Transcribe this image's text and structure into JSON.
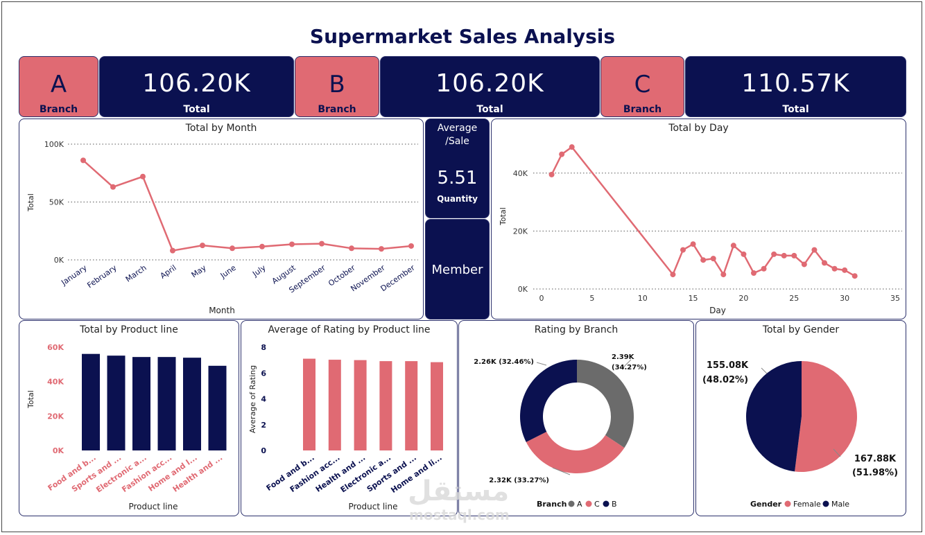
{
  "title": "Supermarket Sales Analysis",
  "colors": {
    "navy": "#0b1150",
    "pink": "#e06a73",
    "gray": "#6b6b6b"
  },
  "kpis": [
    {
      "letter": "A",
      "letter_label": "Branch",
      "value": "106.20K",
      "value_label": "Total"
    },
    {
      "letter": "B",
      "letter_label": "Branch",
      "value": "106.20K",
      "value_label": "Total"
    },
    {
      "letter": "C",
      "letter_label": "Branch",
      "value": "110.57K",
      "value_label": "Total"
    }
  ],
  "avg_card": {
    "title": "Average /Sale",
    "value": "5.51",
    "label": "Quantity"
  },
  "member_card": {
    "label": "Member"
  },
  "watermark": {
    "arabic": "مستقل",
    "latin": "mostaql.com"
  },
  "chart_data": [
    {
      "type": "line",
      "title": "Total by Month",
      "xlabel": "Month",
      "ylabel": "Total",
      "categories": [
        "January",
        "February",
        "March",
        "April",
        "May",
        "June",
        "July",
        "August",
        "September",
        "October",
        "November",
        "December"
      ],
      "values": [
        86,
        63,
        72,
        8,
        12.5,
        10,
        11.5,
        13.5,
        14,
        10,
        9.5,
        12
      ],
      "yticks": [
        "0K",
        "50K",
        "100K"
      ],
      "ylim": [
        0,
        100
      ],
      "grid": true
    },
    {
      "type": "line",
      "title": "Total by Day",
      "xlabel": "Day",
      "ylabel": "Total",
      "x": [
        1,
        2,
        3,
        13,
        14,
        15,
        16,
        17,
        18,
        19,
        20,
        21,
        22,
        23,
        24,
        25,
        26,
        27,
        28,
        29,
        30,
        31
      ],
      "values": [
        39.5,
        46.5,
        49,
        5,
        13.5,
        15.5,
        10,
        10.5,
        5,
        15,
        12,
        5.5,
        7,
        12,
        11.5,
        11.5,
        8.5,
        13.5,
        9,
        7,
        6.5,
        4.5
      ],
      "xticks": [
        "0",
        "5",
        "10",
        "15",
        "20",
        "25",
        "30",
        "35"
      ],
      "xlim": [
        0,
        35
      ],
      "yticks": [
        "0K",
        "20K",
        "40K"
      ],
      "ylim": [
        0,
        50
      ],
      "grid": true
    },
    {
      "type": "bar",
      "title": "Total by Product line",
      "xlabel": "Product line",
      "ylabel": "Total",
      "categories": [
        "Food and b...",
        "Sports and ...",
        "Electronic a...",
        "Fashion acc...",
        "Home and l...",
        "Health and ..."
      ],
      "values": [
        56.1,
        55.1,
        54.3,
        54.3,
        53.9,
        49.2
      ],
      "yticks": [
        "0K",
        "20K",
        "40K",
        "60K"
      ],
      "ylim": [
        0,
        60
      ]
    },
    {
      "type": "bar",
      "title": "Average of Rating by Product line",
      "xlabel": "Product line",
      "ylabel": "Average of Rating",
      "categories": [
        "Food and b...",
        "Fashion acc...",
        "Health and ...",
        "Electronic a...",
        "Sports and ...",
        "Home and li..."
      ],
      "values": [
        7.11,
        7.03,
        7.0,
        6.92,
        6.92,
        6.84
      ],
      "yticks": [
        "0",
        "2",
        "4",
        "6",
        "8"
      ],
      "ylim": [
        0,
        8
      ]
    },
    {
      "type": "pie",
      "title": "Rating by Branch",
      "legend_title": "Branch",
      "slices": [
        {
          "name": "A",
          "value": 2.39,
          "label": "2.39K (34.27%)",
          "color": "#6b6b6b"
        },
        {
          "name": "C",
          "value": 2.32,
          "label": "2.32K (33.27%)",
          "color": "#e06a73"
        },
        {
          "name": "B",
          "value": 2.26,
          "label": "2.26K (32.46%)",
          "color": "#0b1150"
        }
      ]
    },
    {
      "type": "pie",
      "title": "Total by Gender",
      "legend_title": "Gender",
      "slices": [
        {
          "name": "Female",
          "value": 167.88,
          "label_value": "167.88K",
          "label_pct": "(51.98%)",
          "color": "#e06a73"
        },
        {
          "name": "Male",
          "value": 155.08,
          "label_value": "155.08K",
          "label_pct": "(48.02%)",
          "color": "#0b1150"
        }
      ]
    }
  ]
}
